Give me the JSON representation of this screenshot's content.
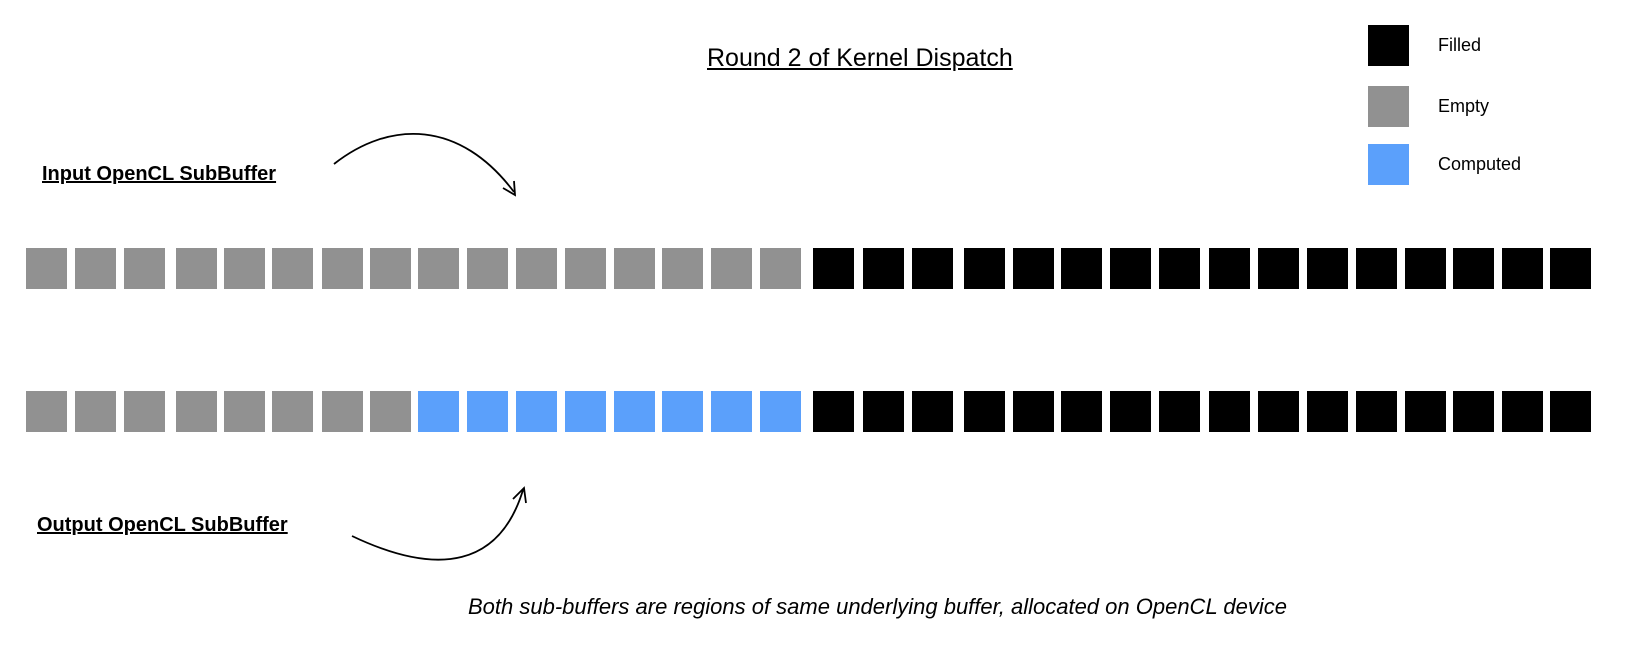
{
  "title": "Round 2 of Kernel Dispatch",
  "labels": {
    "input": "Input OpenCL SubBuffer",
    "output": "Output OpenCL SubBuffer"
  },
  "legend": [
    {
      "label": "Filled",
      "state": "filled"
    },
    {
      "label": "Empty",
      "state": "empty"
    },
    {
      "label": "Computed",
      "state": "computed"
    }
  ],
  "colors": {
    "filled": "#000000",
    "empty": "#919191",
    "computed": "#5ba0fb"
  },
  "buffers": {
    "input": {
      "cells": [
        "empty",
        "empty",
        "empty",
        "empty",
        "empty",
        "empty",
        "empty",
        "empty",
        "empty",
        "empty",
        "empty",
        "empty",
        "empty",
        "empty",
        "empty",
        "empty",
        "filled",
        "filled",
        "filled",
        "filled",
        "filled",
        "filled",
        "filled",
        "filled",
        "filled",
        "filled",
        "filled",
        "filled",
        "filled",
        "filled",
        "filled",
        "filled"
      ]
    },
    "output": {
      "cells": [
        "empty",
        "empty",
        "empty",
        "empty",
        "empty",
        "empty",
        "empty",
        "empty",
        "computed",
        "computed",
        "computed",
        "computed",
        "computed",
        "computed",
        "computed",
        "computed",
        "filled",
        "filled",
        "filled",
        "filled",
        "filled",
        "filled",
        "filled",
        "filled",
        "filled",
        "filled",
        "filled",
        "filled",
        "filled",
        "filled",
        "filled",
        "filled"
      ]
    }
  },
  "caption": "Both sub-buffers are regions of same underlying buffer, allocated on OpenCL device"
}
